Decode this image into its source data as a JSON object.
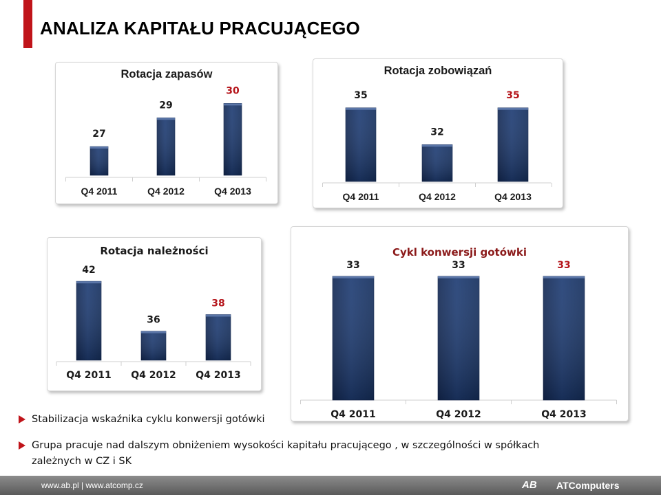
{
  "page": {
    "title": "ANALIZA KAPITAŁU PRACUJĄCEGO",
    "accent_color": "#c0141a"
  },
  "chart_data": [
    {
      "type": "bar",
      "title": "Rotacja zapasów",
      "categories": [
        "Q4 2011",
        "Q4 2012",
        "Q4 2013"
      ],
      "values": [
        27,
        29,
        30
      ],
      "highlight_last_label": true,
      "bar_color": "#1f3d74"
    },
    {
      "type": "bar",
      "title": "Rotacja zobowiązań",
      "categories": [
        "Q4 2011",
        "Q4 2012",
        "Q4 2013"
      ],
      "values": [
        35,
        32,
        35
      ],
      "highlight_last_label": true,
      "bar_color": "#1f3d74"
    },
    {
      "type": "bar",
      "title": "Rotacja należności",
      "categories": [
        "Q4 2011",
        "Q4 2012",
        "Q4 2013"
      ],
      "values": [
        42,
        36,
        38
      ],
      "highlight_last_label": true,
      "bar_color": "#1f3d74"
    },
    {
      "type": "bar",
      "title": "Cykl konwersji gotówki",
      "categories": [
        "Q4 2011",
        "Q4 2012",
        "Q4 2013"
      ],
      "values": [
        33,
        33,
        33
      ],
      "highlight_last_label": true,
      "bar_color": "#1f3d74"
    }
  ],
  "bullets": [
    "Stabilizacja wskaźnika cyklu konwersji gotówki",
    "Grupa pracuje nad dalszym obniżeniem wysokości kapitału pracującego , w szczególności w spółkach zależnych w CZ i SK"
  ],
  "footer": {
    "links": "www.ab.pl  |  www.atcomp.cz",
    "logo": "AB",
    "brand": "ATComputers"
  }
}
